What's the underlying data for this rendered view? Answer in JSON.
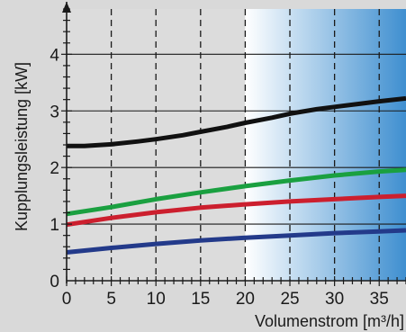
{
  "chart_data": {
    "type": "line",
    "xlabel": "Volumenstrom [m³/h]",
    "ylabel": "Kupplungsleistung [kW]",
    "xlim": [
      0,
      38
    ],
    "ylim": [
      0,
      4.8
    ],
    "x_ticks": [
      0,
      5,
      10,
      15,
      20,
      25,
      30,
      35
    ],
    "y_ticks": [
      0,
      1,
      2,
      3,
      4
    ],
    "x_minor_step": 1,
    "y_minor_step": 0.2,
    "grid": "dashed vertical at every 5 m³/h, solid horizontal at every 1 kW",
    "highlight_region": {
      "x_from": 20,
      "x_to": 38,
      "colors": [
        "#ffffff",
        "#3f8fd0"
      ]
    },
    "series": [
      {
        "color": "#111111",
        "x": [
          0,
          2,
          5,
          8,
          10,
          13,
          15,
          18,
          20,
          23,
          25,
          28,
          30,
          33,
          35,
          38
        ],
        "y": [
          2.38,
          2.38,
          2.41,
          2.46,
          2.5,
          2.57,
          2.63,
          2.72,
          2.79,
          2.88,
          2.95,
          3.03,
          3.07,
          3.13,
          3.17,
          3.22
        ]
      },
      {
        "color": "#1aa040",
        "x": [
          0,
          5,
          10,
          15,
          20,
          25,
          30,
          35,
          38
        ],
        "y": [
          1.18,
          1.3,
          1.44,
          1.56,
          1.67,
          1.77,
          1.86,
          1.93,
          1.96
        ]
      },
      {
        "color": "#cc1f2e",
        "x": [
          0,
          5,
          10,
          15,
          20,
          25,
          30,
          35,
          38
        ],
        "y": [
          0.99,
          1.11,
          1.21,
          1.29,
          1.35,
          1.4,
          1.44,
          1.48,
          1.5
        ]
      },
      {
        "color": "#233a8a",
        "x": [
          0,
          5,
          10,
          15,
          20,
          25,
          30,
          35,
          38
        ],
        "y": [
          0.5,
          0.58,
          0.65,
          0.71,
          0.76,
          0.8,
          0.84,
          0.87,
          0.89
        ]
      }
    ]
  }
}
